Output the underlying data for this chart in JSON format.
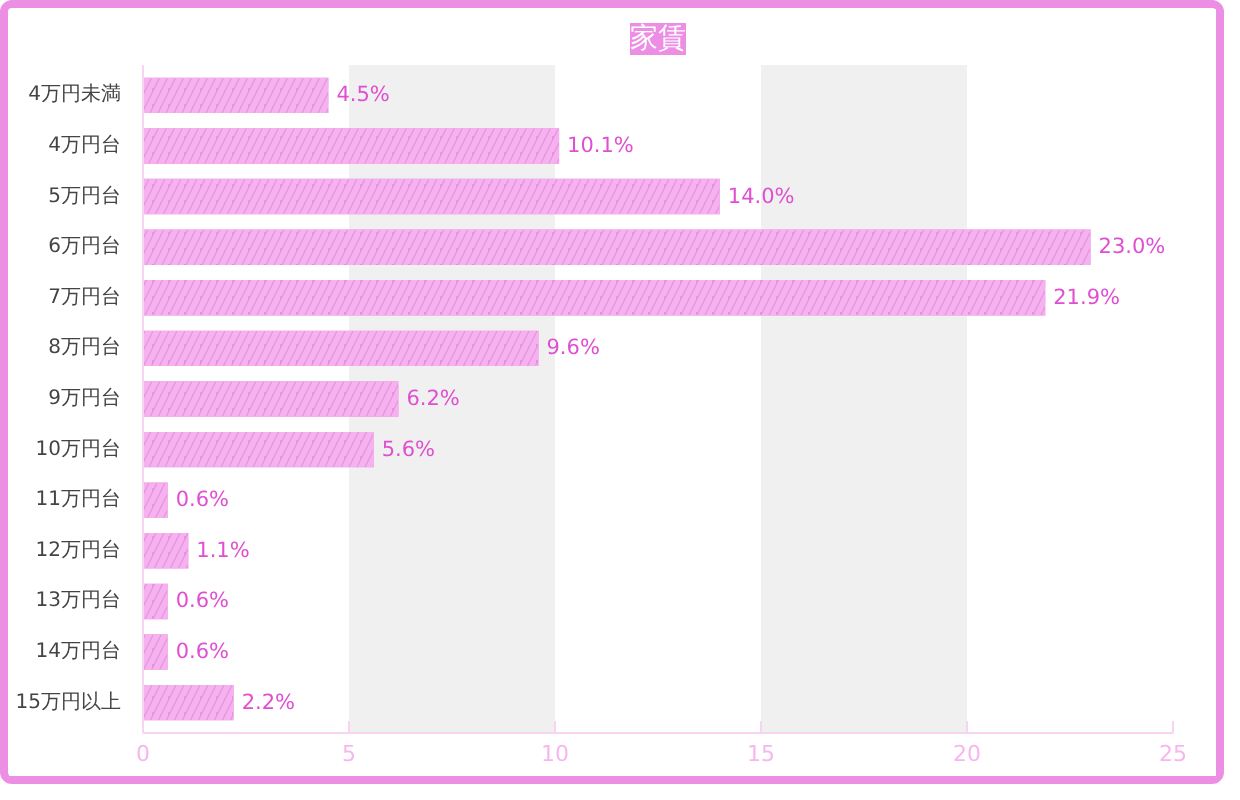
{
  "chart_data": {
    "type": "bar",
    "orientation": "horizontal",
    "title": "家賃",
    "categories": [
      "4万円未満",
      "4万円台",
      "5万円台",
      "6万円台",
      "7万円台",
      "8万円台",
      "9万円台",
      "10万円台",
      "11万円台",
      "12万円台",
      "13万円台",
      "14万円台",
      "15万円以上"
    ],
    "values": [
      4.5,
      10.1,
      14.0,
      23.0,
      21.9,
      9.6,
      6.2,
      5.6,
      0.6,
      1.1,
      0.6,
      0.6,
      2.2
    ],
    "value_labels": [
      "4.5%",
      "10.1%",
      "14.0%",
      "23.0%",
      "21.9%",
      "9.6%",
      "6.2%",
      "5.6%",
      "0.6%",
      "1.1%",
      "0.6%",
      "0.6%",
      "2.2%"
    ],
    "color": "#ec8ee3",
    "xlim": [
      0,
      25
    ],
    "xticks": [
      0,
      5,
      10,
      15,
      20,
      25
    ],
    "bands": [
      {
        "axis": "x",
        "from": 5,
        "to": 10,
        "color": "#f0f0f0"
      },
      {
        "axis": "x",
        "from": 15,
        "to": 20,
        "color": "#f0f0f0"
      }
    ]
  }
}
